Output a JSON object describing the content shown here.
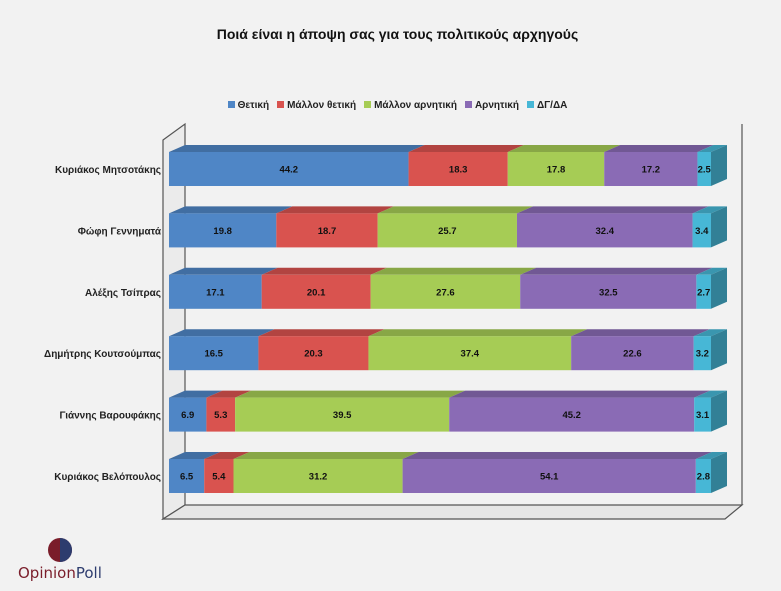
{
  "chart_data": {
    "type": "bar",
    "stacked": true,
    "orientation": "horizontal",
    "title": "Ποιά είναι η άποψη σας για τους πολιτικούς αρχηγούς",
    "categories": [
      "Κυριάκος Μητσοτάκης",
      "Φώφη Γεννηματά",
      "Αλέξης Τσίπρας",
      "Δημήτρης Κουτσούμπας",
      "Γιάννης Βαρουφάκης",
      "Κυριάκος Βελόπουλος"
    ],
    "series": [
      {
        "name": "Θετική",
        "color": "#4f86c6",
        "values": [
          44.2,
          19.8,
          17.1,
          16.5,
          6.9,
          6.5
        ]
      },
      {
        "name": "Μάλλον θετική",
        "color": "#d9534f",
        "values": [
          18.3,
          18.7,
          20.1,
          20.3,
          5.3,
          5.4
        ]
      },
      {
        "name": "Μάλλον αρνητική",
        "color": "#a6cc55",
        "values": [
          17.8,
          25.7,
          27.6,
          37.4,
          39.5,
          31.2
        ]
      },
      {
        "name": "Αρνητική",
        "color": "#8a6bb5",
        "values": [
          17.2,
          32.4,
          32.5,
          22.6,
          45.2,
          54.1
        ]
      },
      {
        "name": "ΔΓ/ΔΑ",
        "color": "#47b7d6",
        "values": [
          2.5,
          3.4,
          2.7,
          3.2,
          3.1,
          2.8
        ]
      }
    ],
    "xlim": [
      0,
      100
    ],
    "legend_position": "top",
    "data_labels": true
  },
  "logo": {
    "part1": "Opinion",
    "part2": "Poll"
  }
}
